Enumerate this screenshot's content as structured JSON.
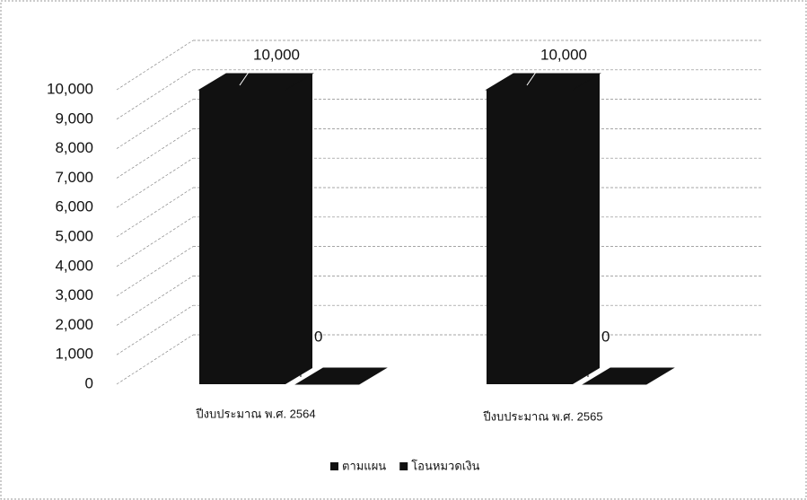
{
  "chart_data": {
    "type": "bar3d",
    "categories": [
      "ปีงบประมาณ พ.ศ. 2564",
      "ปีงบประมาณ พ.ศ. 2565"
    ],
    "series": [
      {
        "name": "ตามแผน",
        "color": "#111111",
        "values": [
          10000,
          10000
        ],
        "value_labels": [
          "10,000",
          "10,000"
        ]
      },
      {
        "name": "โอนหมวดเงิน",
        "color": "#111111",
        "values": [
          0,
          0
        ]
      }
    ],
    "ylim": [
      0,
      10000
    ],
    "yticks": [
      0,
      {
        "value": 1000,
        "label": "1,000"
      },
      {
        "value": 2000,
        "label": "2,000"
      },
      {
        "value": 3000,
        "label": "3,000"
      },
      {
        "value": 4000,
        "label": "4,000"
      },
      {
        "value": 5000,
        "label": "5,000"
      },
      {
        "value": 6000,
        "label": "6,000"
      },
      {
        "value": 7000,
        "label": "7,000"
      },
      {
        "value": 8000,
        "label": "8,000"
      },
      {
        "value": 9000,
        "label": "9,000"
      },
      {
        "value": 10000,
        "label": "10,000"
      }
    ],
    "grid": true,
    "legend": "bottom"
  }
}
